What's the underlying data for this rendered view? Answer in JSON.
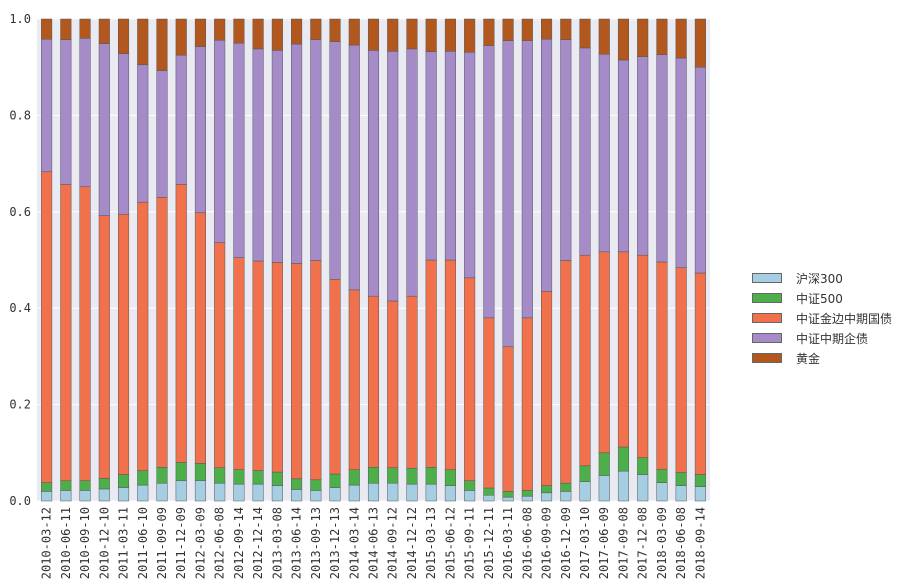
{
  "chart_data": {
    "type": "bar",
    "stacked": true,
    "title": "",
    "xlabel": "",
    "ylabel": "",
    "ylim": [
      0,
      1.0
    ],
    "yticks": [
      "0.0",
      "0.2",
      "0.4",
      "0.6",
      "0.8",
      "1.0"
    ],
    "grid": true,
    "legend_position": "right",
    "categories": [
      "2010-03-12",
      "2010-06-11",
      "2010-09-10",
      "2010-12-10",
      "2011-03-11",
      "2011-06-10",
      "2011-09-09",
      "2011-12-09",
      "2012-03-09",
      "2012-06-08",
      "2012-09-14",
      "2012-12-14",
      "2013-03-08",
      "2013-06-14",
      "2013-09-13",
      "2013-12-13",
      "2014-03-14",
      "2014-06-13",
      "2014-09-12",
      "2014-12-12",
      "2015-03-13",
      "2015-06-12",
      "2015-09-11",
      "2015-12-11",
      "2016-03-11",
      "2016-06-08",
      "2016-09-09",
      "2016-12-09",
      "2017-03-10",
      "2017-06-09",
      "2017-09-08",
      "2017-12-08",
      "2018-03-09",
      "2018-06-08",
      "2018-09-14"
    ],
    "series": [
      {
        "name": "沪深300",
        "color": "#a6cee3",
        "values": [
          0.02,
          0.022,
          0.022,
          0.025,
          0.028,
          0.033,
          0.037,
          0.042,
          0.042,
          0.037,
          0.035,
          0.035,
          0.032,
          0.024,
          0.022,
          0.028,
          0.033,
          0.037,
          0.037,
          0.035,
          0.035,
          0.032,
          0.022,
          0.012,
          0.008,
          0.01,
          0.017,
          0.02,
          0.04,
          0.053,
          0.062,
          0.055,
          0.038,
          0.032,
          0.03
        ]
      },
      {
        "name": "中证500",
        "color": "#4daf4a",
        "values": [
          0.018,
          0.02,
          0.02,
          0.022,
          0.027,
          0.03,
          0.033,
          0.038,
          0.036,
          0.032,
          0.03,
          0.028,
          0.028,
          0.022,
          0.022,
          0.028,
          0.032,
          0.033,
          0.032,
          0.033,
          0.035,
          0.033,
          0.02,
          0.015,
          0.012,
          0.012,
          0.015,
          0.017,
          0.033,
          0.047,
          0.05,
          0.035,
          0.028,
          0.027,
          0.025
        ]
      },
      {
        "name": "中证金边中期国债",
        "color": "#f0714b",
        "values": [
          0.645,
          0.615,
          0.61,
          0.545,
          0.54,
          0.557,
          0.56,
          0.577,
          0.52,
          0.467,
          0.44,
          0.435,
          0.435,
          0.447,
          0.455,
          0.404,
          0.373,
          0.355,
          0.346,
          0.357,
          0.43,
          0.435,
          0.421,
          0.353,
          0.3,
          0.358,
          0.403,
          0.462,
          0.437,
          0.417,
          0.405,
          0.42,
          0.43,
          0.425,
          0.418
        ]
      },
      {
        "name": "中证中期企债",
        "color": "#a58cc8",
        "values": [
          0.275,
          0.3,
          0.308,
          0.357,
          0.333,
          0.285,
          0.263,
          0.268,
          0.345,
          0.42,
          0.445,
          0.44,
          0.44,
          0.455,
          0.458,
          0.493,
          0.508,
          0.51,
          0.518,
          0.513,
          0.432,
          0.433,
          0.468,
          0.565,
          0.635,
          0.575,
          0.523,
          0.458,
          0.43,
          0.41,
          0.398,
          0.412,
          0.43,
          0.435,
          0.427
        ]
      },
      {
        "name": "黄金",
        "color": "#b2581f",
        "values": [
          0.042,
          0.043,
          0.04,
          0.051,
          0.072,
          0.095,
          0.107,
          0.075,
          0.057,
          0.044,
          0.05,
          0.062,
          0.065,
          0.052,
          0.043,
          0.047,
          0.054,
          0.065,
          0.067,
          0.062,
          0.068,
          0.067,
          0.069,
          0.055,
          0.045,
          0.045,
          0.042,
          0.043,
          0.06,
          0.073,
          0.085,
          0.078,
          0.074,
          0.081,
          0.1
        ]
      }
    ]
  }
}
